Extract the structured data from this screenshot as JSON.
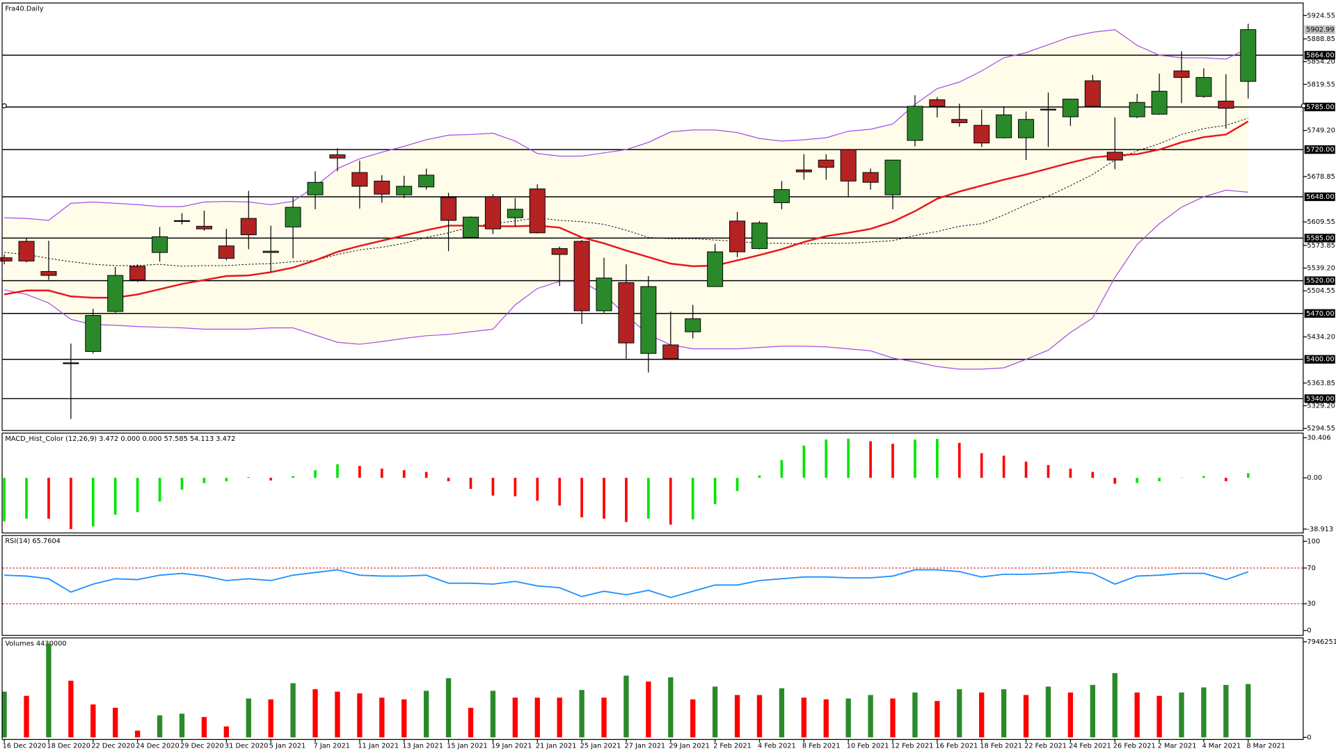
{
  "chart_data": [
    {
      "type": "candlestick",
      "title": "Fra40.Daily",
      "categories": [
        "16 Dec 2020",
        null,
        "18 Dec 2020",
        null,
        "22 Dec 2020",
        null,
        "24 Dec 2020",
        null,
        "29 Dec 2020",
        null,
        "31 Dec 2020",
        null,
        "5 Jan 2021",
        null,
        "7 Jan 2021",
        null,
        "11 Jan 2021",
        null,
        "13 Jan 2021",
        null,
        "15 Jan 2021",
        null,
        "19 Jan 2021",
        null,
        "21 Jan 2021",
        null,
        "25 Jan 2021",
        null,
        "27 Jan 2021",
        null,
        "29 Jan 2021",
        null,
        "2 Feb 2021",
        null,
        "4 Feb 2021",
        null,
        "8 Feb 2021",
        null,
        "10 Feb 2021",
        null,
        "12 Feb 2021",
        null,
        "16 Feb 2021",
        null,
        "18 Feb 2021",
        null,
        "22 Feb 2021",
        null,
        "24 Feb 2021",
        null,
        "26 Feb 2021",
        null,
        "2 Mar 2021",
        null,
        "4 Mar 2021",
        null,
        "8 Mar 2021"
      ],
      "open": [
        5555,
        5580,
        5534,
        5394,
        5412,
        5473,
        5542,
        5563,
        5611,
        5603,
        5573,
        5615,
        5563,
        5602,
        5651,
        5712,
        5685,
        5672,
        5651,
        5663,
        5647,
        5586,
        5648,
        5616,
        5660,
        5569,
        5580,
        5474,
        5517,
        5409,
        5422,
        5442,
        5511,
        5611,
        5569,
        5639,
        5689,
        5704,
        5720,
        5685,
        5651,
        5734,
        5796,
        5766,
        5757,
        5738,
        5738,
        5780,
        5770,
        5825,
        5716,
        5770,
        5774,
        5840,
        5801,
        5794,
        5824
      ],
      "high": [
        5560,
        5585,
        5581,
        5424,
        5477,
        5541,
        5545,
        5602,
        5623,
        5627,
        5599,
        5657,
        5604,
        5647,
        5687,
        5722,
        5703,
        5681,
        5680,
        5691,
        5654,
        5618,
        5652,
        5646,
        5667,
        5572,
        5582,
        5555,
        5545,
        5527,
        5473,
        5483,
        5576,
        5625,
        5611,
        5672,
        5713,
        5713,
        5721,
        5691,
        5704,
        5803,
        5800,
        5790,
        5781,
        5786,
        5778,
        5807,
        5797,
        5834,
        5769,
        5805,
        5836,
        5870,
        5844,
        5835,
        5912
      ],
      "low": [
        5545,
        5548,
        5521,
        5309,
        5409,
        5471,
        5518,
        5549,
        5606,
        5596,
        5551,
        5568,
        5534,
        5554,
        5629,
        5687,
        5630,
        5639,
        5646,
        5659,
        5565,
        5585,
        5591,
        5603,
        5592,
        5512,
        5454,
        5471,
        5401,
        5380,
        5400,
        5432,
        5511,
        5556,
        5568,
        5629,
        5674,
        5674,
        5648,
        5659,
        5629,
        5725,
        5769,
        5755,
        5724,
        5737,
        5704,
        5724,
        5756,
        5786,
        5690,
        5768,
        5773,
        5791,
        5799,
        5752,
        5798
      ],
      "close": [
        5550,
        5550,
        5528,
        5394,
        5467,
        5528,
        5521,
        5587,
        5610,
        5599,
        5554,
        5590,
        5565,
        5632,
        5670,
        5707,
        5664,
        5652,
        5664,
        5681,
        5612,
        5617,
        5599,
        5629,
        5593,
        5560,
        5474,
        5524,
        5425,
        5511,
        5401,
        5462,
        5564,
        5564,
        5608,
        5659,
        5686,
        5693,
        5672,
        5670,
        5704,
        5786,
        5786,
        5761,
        5730,
        5773,
        5766,
        5781,
        5797,
        5786,
        5704,
        5792,
        5809,
        5830,
        5830,
        5783,
        5902.99
      ],
      "upper_band": [
        5616,
        5615,
        5612,
        5638,
        5640,
        5638,
        5636,
        5633,
        5633,
        5640,
        5641,
        5640,
        5636,
        5641,
        5664,
        5691,
        5706,
        5716,
        5725,
        5735,
        5742,
        5743,
        5745,
        5733,
        5714,
        5710,
        5710,
        5715,
        5720,
        5731,
        5747,
        5750,
        5750,
        5746,
        5737,
        5733,
        5735,
        5738,
        5748,
        5751,
        5759,
        5789,
        5813,
        5823,
        5840,
        5860,
        5868,
        5880,
        5892,
        5899,
        5903,
        5879,
        5864,
        5860,
        5860,
        5858,
        5875
      ],
      "middle_band": [
        5563,
        5560,
        5554,
        5549,
        5545,
        5543,
        5543,
        5545,
        5542,
        5543,
        5543,
        5545,
        5546,
        5549,
        5551,
        5560,
        5567,
        5571,
        5577,
        5586,
        5593,
        5602,
        5607,
        5611,
        5616,
        5612,
        5610,
        5606,
        5597,
        5586,
        5584,
        5584,
        5582,
        5580,
        5577,
        5577,
        5576,
        5577,
        5577,
        5579,
        5581,
        5589,
        5595,
        5603,
        5607,
        5620,
        5636,
        5649,
        5665,
        5682,
        5704,
        5718,
        5729,
        5743,
        5752,
        5757,
        5768
      ],
      "lower_band": [
        5506,
        5499,
        5486,
        5461,
        5453,
        5452,
        5450,
        5449,
        5448,
        5446,
        5446,
        5446,
        5448,
        5448,
        5437,
        5426,
        5423,
        5427,
        5432,
        5436,
        5438,
        5442,
        5446,
        5483,
        5508,
        5519,
        5519,
        5499,
        5467,
        5438,
        5422,
        5416,
        5416,
        5416,
        5418,
        5420,
        5420,
        5419,
        5416,
        5413,
        5402,
        5396,
        5389,
        5385,
        5385,
        5387,
        5400,
        5414,
        5441,
        5463,
        5525,
        5575,
        5607,
        5632,
        5648,
        5658,
        5655
      ],
      "moving_average": [
        5499,
        5505,
        5505,
        5496,
        5494,
        5494,
        5499,
        5507,
        5515,
        5521,
        5527,
        5528,
        5533,
        5540,
        5551,
        5564,
        5573,
        5581,
        5589,
        5597,
        5604,
        5604,
        5603,
        5603,
        5604,
        5601,
        5586,
        5577,
        5566,
        5556,
        5546,
        5542,
        5543,
        5551,
        5559,
        5568,
        5579,
        5588,
        5593,
        5599,
        5610,
        5626,
        5645,
        5656,
        5665,
        5674,
        5682,
        5691,
        5700,
        5708,
        5711,
        5713,
        5720,
        5731,
        5739,
        5743,
        5763
      ],
      "up_color": "#2a8a2a",
      "down_color": "#b52222",
      "band_color": "#a34ee6",
      "band_fill": "#fffcea",
      "ma_color": "#e8141a",
      "ylim": [
        5292,
        5943
      ],
      "yticks": [
        5924.55,
        5888.85,
        {
          "value": 5854.2,
          "label": "5854.20"
        },
        5819.55,
        {
          "value": 5749.2,
          "label": "5749.20"
        },
        5678.85,
        5609.55,
        5573.85,
        {
          "value": 5539.2,
          "label": "5539.20"
        },
        5504.55,
        {
          "value": 5434.2,
          "label": "5434.20"
        },
        5363.85,
        {
          "value": 5329.2,
          "label": "5329.20"
        },
        5294.55
      ],
      "levels": [
        {
          "value": 5864,
          "label": "5864.00"
        },
        {
          "value": 5785,
          "label": "5785.00"
        },
        {
          "value": 5720,
          "label": "5720.00"
        },
        {
          "value": 5648,
          "label": "5648.00"
        },
        {
          "value": 5585,
          "label": "5585.00"
        },
        {
          "value": 5520,
          "label": "5520.00"
        },
        {
          "value": 5470,
          "label": "5470.00"
        },
        {
          "value": 5400,
          "label": "5400.00"
        },
        {
          "value": 5340,
          "label": "5340.00"
        }
      ]
    },
    {
      "type": "histogram",
      "title": "MACD_Hist_Color (12,26,9) 3.472 0.000 0.000 57.585 54.113 3.472",
      "values": [
        -33,
        -31,
        -31,
        -38.9,
        -37,
        -28,
        -26,
        -18,
        -9,
        -4,
        -2.6,
        0.6,
        -2,
        1.3,
        5.8,
        10.3,
        9,
        7,
        5.8,
        4.5,
        -2.6,
        -8.4,
        -13.5,
        -14,
        -17.4,
        -21,
        -30,
        -31,
        -33.5,
        -31,
        -35.5,
        -31.6,
        -20,
        -10,
        1.9,
        13.5,
        24.5,
        29,
        29.7,
        27.7,
        25.8,
        29,
        29.5,
        26.5,
        18.7,
        16.8,
        12.3,
        9.7,
        7,
        4.5,
        -4.5,
        -3.9,
        -2.6,
        0.2,
        1.3,
        -2.6,
        3.472
      ],
      "up_color": "#00e600",
      "down_color": "#ff0000",
      "ylim": [
        -41.5,
        33.6
      ],
      "yticks": [
        30.406,
        {
          "value": 0,
          "label": "0.00"
        },
        -38.913
      ]
    },
    {
      "type": "line",
      "title": "RSI(14) 65.7604",
      "values": [
        62,
        61,
        58,
        43,
        52,
        58,
        57,
        62,
        64,
        61,
        56,
        58,
        56,
        62,
        65,
        68,
        62,
        61,
        61,
        62,
        53,
        53,
        52,
        55,
        50,
        48,
        38,
        44,
        40,
        45,
        37,
        44,
        51,
        51,
        56,
        58,
        60,
        60,
        59,
        59,
        61,
        68,
        68,
        66,
        60,
        63,
        63,
        64,
        66,
        64,
        52,
        61,
        62,
        64,
        64,
        57,
        65.7604
      ],
      "color": "#1e90ff",
      "level_color": "#d22",
      "levels": [
        30,
        70
      ],
      "ylim": [
        -5,
        106
      ],
      "yticks": [
        100,
        70,
        30,
        0
      ]
    },
    {
      "type": "volume",
      "title": "Volumes 4430000",
      "values": [
        3800000,
        3450000,
        7800000,
        4710000,
        2740000,
        2460000,
        560000,
        1830000,
        1970000,
        1690000,
        910000,
        3230000,
        3160000,
        4500000,
        4000000,
        3800000,
        3660000,
        3300000,
        3160000,
        3870000,
        4920000,
        2460000,
        3870000,
        3300000,
        3300000,
        3300000,
        3940000,
        3300000,
        5130000,
        4640000,
        4990000,
        3160000,
        4220000,
        3520000,
        3520000,
        4080000,
        3300000,
        3160000,
        3230000,
        3520000,
        3230000,
        3730000,
        3020000,
        4000000,
        3730000,
        4000000,
        3520000,
        4220000,
        3730000,
        4360000,
        5340000,
        3730000,
        3450000,
        3730000,
        4150000,
        4360000,
        4430000
      ],
      "up_color": "#2a8a2a",
      "down_color": "#ff0000",
      "ylim": [
        -140000,
        8230000
      ],
      "yticks": [
        7946251,
        0
      ]
    }
  ]
}
